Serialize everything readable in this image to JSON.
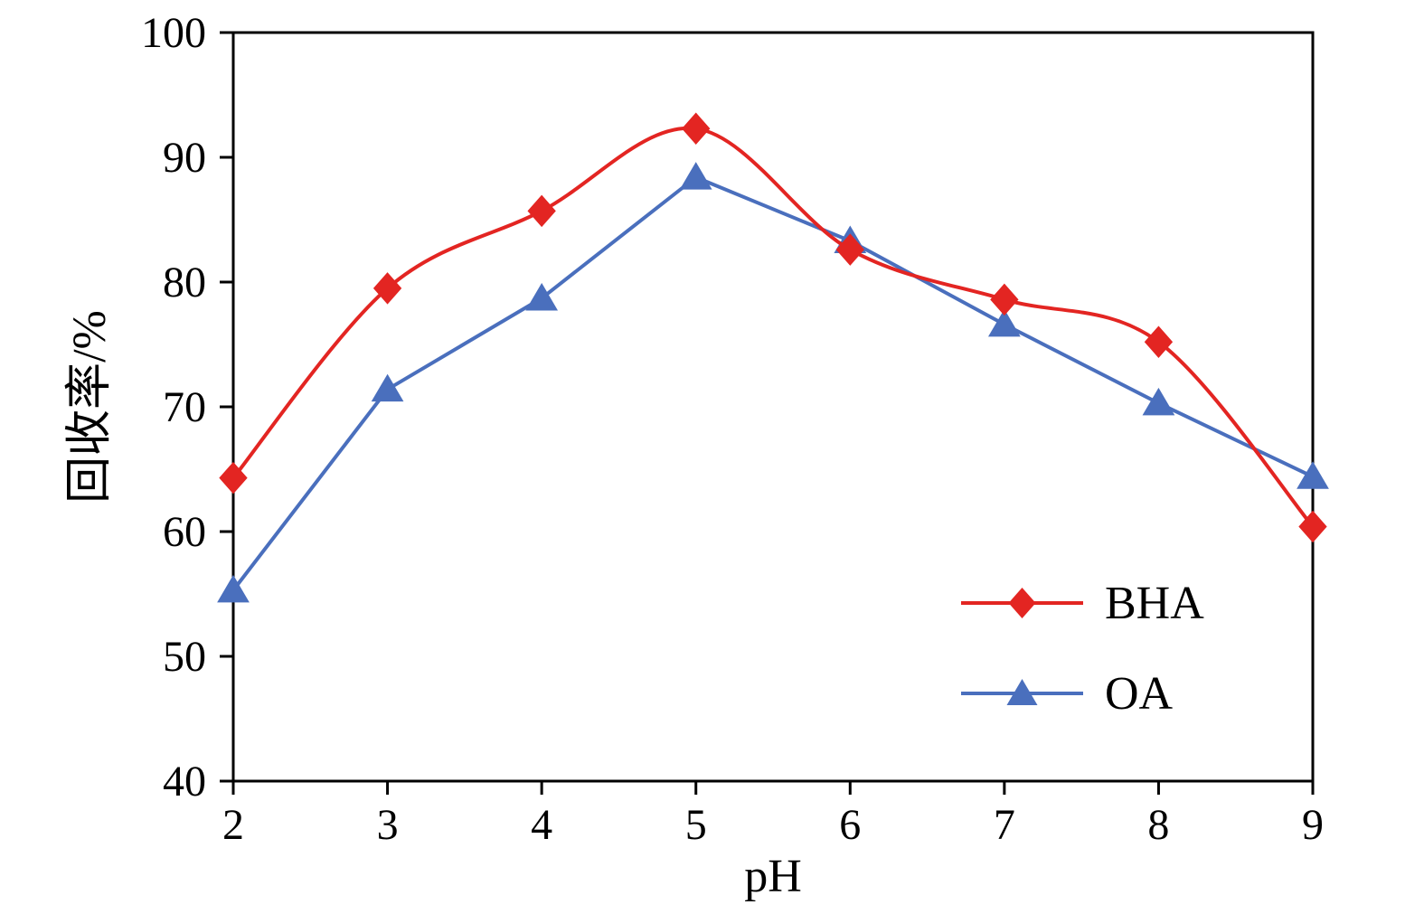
{
  "chart_data": {
    "type": "line",
    "title": "",
    "xlabel": "pH",
    "ylabel": "回收率/%",
    "x": [
      2,
      3,
      4,
      5,
      6,
      7,
      8,
      9
    ],
    "xlim": [
      2,
      9
    ],
    "ylim": [
      40,
      100
    ],
    "xticks": [
      2,
      3,
      4,
      5,
      6,
      7,
      8,
      9
    ],
    "yticks": [
      40,
      50,
      60,
      70,
      80,
      90,
      100
    ],
    "grid": false,
    "legend_position": "inside-lower-right",
    "series": [
      {
        "name": "BHA",
        "color": "#e32522",
        "marker": "diamond",
        "smooth": true,
        "values": [
          64.3,
          79.5,
          85.7,
          92.3,
          82.6,
          78.6,
          75.2,
          60.4
        ]
      },
      {
        "name": "OA",
        "color": "#4a6fbd",
        "marker": "triangle",
        "smooth": false,
        "values": [
          55.3,
          71.4,
          78.7,
          88.4,
          83.3,
          76.6,
          70.3,
          64.4
        ]
      }
    ]
  },
  "colors": {
    "background": "#ffffff",
    "axis": "#000000",
    "text": "#000000"
  }
}
